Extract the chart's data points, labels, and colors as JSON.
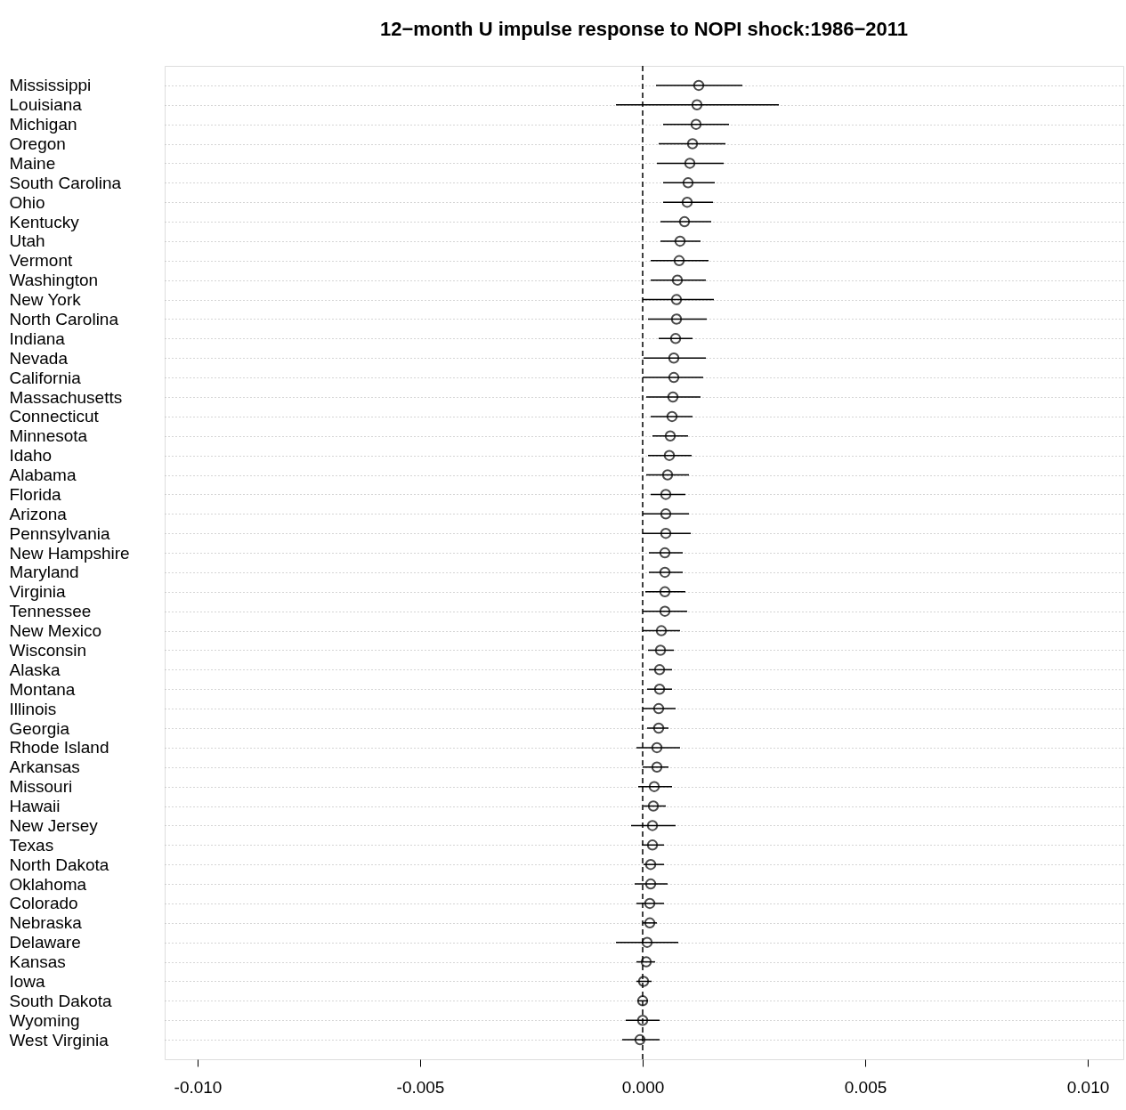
{
  "chart_data": {
    "type": "scatter",
    "orientation": "horizontal",
    "title": "12−month U impulse response to NOPI shock:1986−2011",
    "categories": [
      "Mississippi",
      "Louisiana",
      "Michigan",
      "Oregon",
      "Maine",
      "South Carolina",
      "Ohio",
      "Kentucky",
      "Utah",
      "Vermont",
      "Washington",
      "New York",
      "North Carolina",
      "Indiana",
      "Nevada",
      "California",
      "Massachusetts",
      "Connecticut",
      "Minnesota",
      "Idaho",
      "Alabama",
      "Florida",
      "Arizona",
      "Pennsylvania",
      "New Hampshire",
      "Maryland",
      "Virginia",
      "Tennessee",
      "New Mexico",
      "Wisconsin",
      "Alaska",
      "Montana",
      "Illinois",
      "Georgia",
      "Rhode Island",
      "Arkansas",
      "Missouri",
      "Hawaii",
      "New Jersey",
      "Texas",
      "North Dakota",
      "Oklahoma",
      "Colorado",
      "Nebraska",
      "Delaware",
      "Kansas",
      "Iowa",
      "South Dakota",
      "Wyoming",
      "West Virginia"
    ],
    "values": [
      0.00126,
      0.00122,
      0.0012,
      0.00112,
      0.00106,
      0.00102,
      0.001,
      0.00094,
      0.00084,
      0.00082,
      0.00078,
      0.00076,
      0.00076,
      0.00074,
      0.0007,
      0.0007,
      0.00068,
      0.00066,
      0.00062,
      0.0006,
      0.00056,
      0.00052,
      0.00052,
      0.00052,
      0.0005,
      0.0005,
      0.0005,
      0.0005,
      0.00042,
      0.0004,
      0.00038,
      0.00038,
      0.00036,
      0.00036,
      0.00032,
      0.00032,
      0.00026,
      0.00024,
      0.00022,
      0.00022,
      0.00018,
      0.00018,
      0.00016,
      0.00016,
      0.0001,
      8e-05,
      2e-05,
      0.0,
      0.0,
      -6e-05
    ],
    "errors": [
      [
        0.0003,
        0.00224
      ],
      [
        -0.0006,
        0.00306
      ],
      [
        0.00046,
        0.00194
      ],
      [
        0.00036,
        0.00186
      ],
      [
        0.00032,
        0.00182
      ],
      [
        0.00046,
        0.00162
      ],
      [
        0.00046,
        0.00158
      ],
      [
        0.0004,
        0.00154
      ],
      [
        0.0004,
        0.0013
      ],
      [
        0.00018,
        0.00148
      ],
      [
        0.00018,
        0.00142
      ],
      [
        0.0,
        0.0016
      ],
      [
        0.00012,
        0.00144
      ],
      [
        0.00036,
        0.00112
      ],
      [
        2e-05,
        0.00142
      ],
      [
        0.0,
        0.00136
      ],
      [
        8e-05,
        0.0013
      ],
      [
        0.00018,
        0.00112
      ],
      [
        0.00022,
        0.00102
      ],
      [
        0.00012,
        0.0011
      ],
      [
        8e-05,
        0.00104
      ],
      [
        0.00018,
        0.00096
      ],
      [
        0.0,
        0.00104
      ],
      [
        0.0,
        0.00108
      ],
      [
        0.00014,
        0.0009
      ],
      [
        0.00014,
        0.0009
      ],
      [
        6e-05,
        0.00096
      ],
      [
        0.0,
        0.001
      ],
      [
        0.0,
        0.00084
      ],
      [
        0.00012,
        0.0007
      ],
      [
        0.00014,
        0.00066
      ],
      [
        0.0001,
        0.00066
      ],
      [
        0.0,
        0.00074
      ],
      [
        0.0001,
        0.00058
      ],
      [
        -0.00014,
        0.00084
      ],
      [
        0.0,
        0.00058
      ],
      [
        -0.0001,
        0.00066
      ],
      [
        2e-05,
        0.00052
      ],
      [
        -0.00026,
        0.00074
      ],
      [
        -2e-05,
        0.00048
      ],
      [
        2e-05,
        0.00048
      ],
      [
        -0.00018,
        0.00056
      ],
      [
        -0.00014,
        0.00048
      ],
      [
        0.0,
        0.00032
      ],
      [
        -0.0006,
        0.0008
      ],
      [
        -0.00014,
        0.00028
      ],
      [
        -0.00014,
        0.0002
      ],
      [
        -0.00012,
        0.00012
      ],
      [
        -0.00038,
        0.00038
      ],
      [
        -0.00046,
        0.00038
      ]
    ],
    "color": "#000000",
    "marker": "circle",
    "grid": "y",
    "xlim": [
      -0.01074,
      0.0108
    ],
    "xticks": [
      {
        "value": -0.01,
        "label": "-0.010"
      },
      {
        "value": -0.005,
        "label": "-0.005"
      },
      {
        "value": 0,
        "label": "0.000"
      },
      {
        "value": 0.005,
        "label": "0.005"
      },
      {
        "value": 0.01,
        "label": "0.010"
      }
    ],
    "ref_lines": [
      {
        "axis": "x",
        "value": 0,
        "label": null,
        "line_style": "dashed"
      }
    ]
  }
}
